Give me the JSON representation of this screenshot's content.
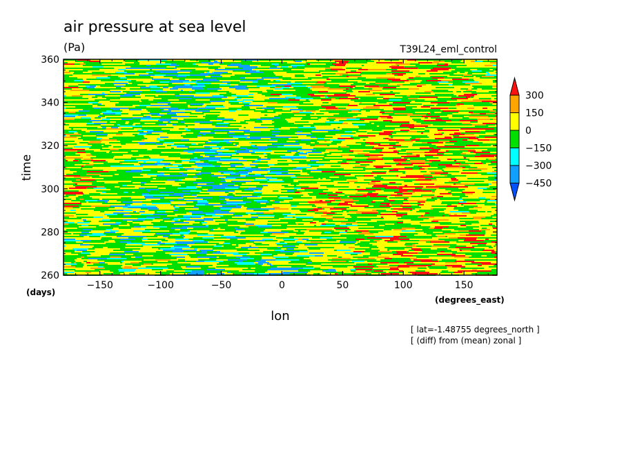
{
  "chart_data": {
    "type": "heatmap",
    "title": "air pressure at sea level",
    "units": "(Pa)",
    "run_label": "T39L24_eml_control",
    "xlabel": "lon",
    "ylabel": "time",
    "x_units": "(degrees_east)",
    "y_units": "(days)",
    "xlim": [
      -180,
      177.2
    ],
    "ylim": [
      260,
      360
    ],
    "x_ticks": [
      -150,
      -100,
      -50,
      0,
      50,
      100,
      150
    ],
    "y_ticks": [
      260,
      280,
      300,
      320,
      340,
      360
    ],
    "notes": [
      "[ lat=-1.48755 degrees_north ]",
      "[ (diff) from (mean) zonal ]"
    ],
    "colorbar": {
      "levels": [
        300,
        150,
        0,
        -150,
        -300,
        -450
      ],
      "bins": [
        {
          "name": "above 300",
          "color": "#ff1010"
        },
        {
          "name": "150 to 300",
          "color": "#ffa500"
        },
        {
          "name": "0 to 150",
          "color": "#ffff00"
        },
        {
          "name": "-150 to 0",
          "color": "#00e000"
        },
        {
          "name": "-300 to -150",
          "color": "#00ffff"
        },
        {
          "name": "-450 to -300",
          "color": "#10a0ff"
        },
        {
          "name": "below -450",
          "color": "#0050ff"
        }
      ]
    },
    "field_description": "Longitude-time Hovmoller of sea level pressure anomaly (diff from zonal mean); dominantly yellow (0 to 150) and green (-150 to 0) with scattered orange, cyan and sparse red/blue streaks."
  }
}
